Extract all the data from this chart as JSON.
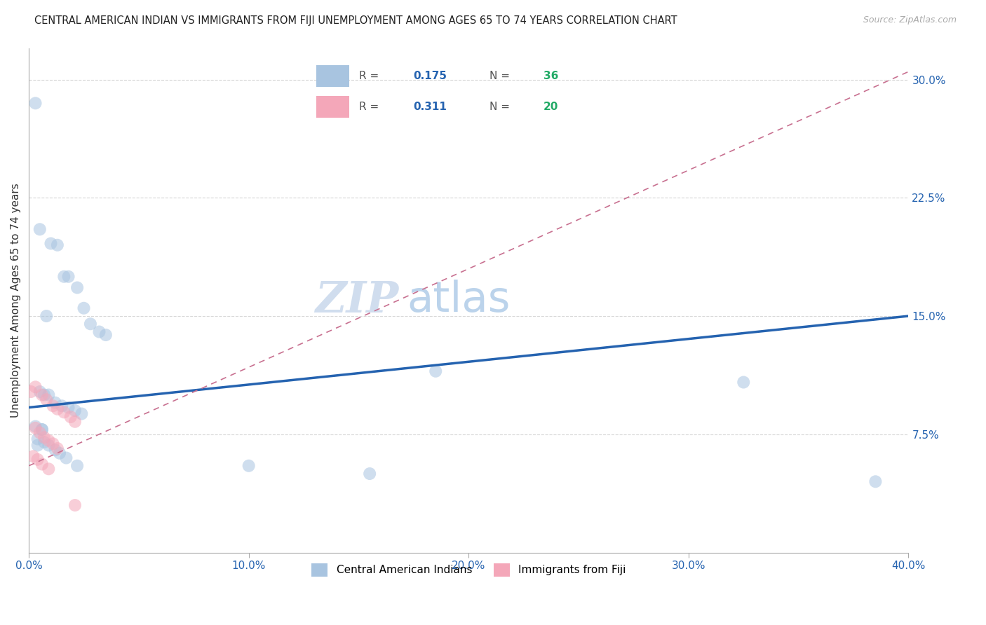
{
  "title": "CENTRAL AMERICAN INDIAN VS IMMIGRANTS FROM FIJI UNEMPLOYMENT AMONG AGES 65 TO 74 YEARS CORRELATION CHART",
  "source": "Source: ZipAtlas.com",
  "ylabel": "Unemployment Among Ages 65 to 74 years",
  "xlabel": "",
  "watermark_zip": "ZIP",
  "watermark_atlas": "atlas",
  "xlim": [
    0.0,
    0.4
  ],
  "ylim": [
    0.0,
    0.32
  ],
  "xticks": [
    0.0,
    0.1,
    0.2,
    0.3,
    0.4
  ],
  "yticks": [
    0.075,
    0.15,
    0.225,
    0.3
  ],
  "xticklabels": [
    "0.0%",
    "10.0%",
    "20.0%",
    "30.0%",
    "40.0%"
  ],
  "yticklabels": [
    "7.5%",
    "15.0%",
    "22.5%",
    "30.0%"
  ],
  "blue_line_color": "#2563b0",
  "pink_dashed_color": "#c87090",
  "grid_color": "#cccccc",
  "background_color": "#ffffff",
  "blue_scatter_color": "#a8c4e0",
  "pink_scatter_color": "#f4a7b9",
  "blue_scatter": [
    [
      0.003,
      0.285
    ],
    [
      0.005,
      0.205
    ],
    [
      0.01,
      0.196
    ],
    [
      0.013,
      0.195
    ],
    [
      0.016,
      0.175
    ],
    [
      0.018,
      0.175
    ],
    [
      0.022,
      0.168
    ],
    [
      0.025,
      0.155
    ],
    [
      0.008,
      0.15
    ],
    [
      0.028,
      0.145
    ],
    [
      0.032,
      0.14
    ],
    [
      0.035,
      0.138
    ],
    [
      0.005,
      0.102
    ],
    [
      0.007,
      0.1
    ],
    [
      0.009,
      0.1
    ],
    [
      0.012,
      0.095
    ],
    [
      0.015,
      0.093
    ],
    [
      0.018,
      0.092
    ],
    [
      0.021,
      0.09
    ],
    [
      0.024,
      0.088
    ],
    [
      0.003,
      0.08
    ],
    [
      0.006,
      0.078
    ],
    [
      0.004,
      0.072
    ],
    [
      0.007,
      0.07
    ],
    [
      0.009,
      0.068
    ],
    [
      0.012,
      0.065
    ],
    [
      0.014,
      0.063
    ],
    [
      0.017,
      0.06
    ],
    [
      0.022,
      0.055
    ],
    [
      0.1,
      0.055
    ],
    [
      0.155,
      0.05
    ],
    [
      0.185,
      0.115
    ],
    [
      0.325,
      0.108
    ],
    [
      0.385,
      0.045
    ],
    [
      0.006,
      0.078
    ],
    [
      0.004,
      0.068
    ]
  ],
  "pink_scatter": [
    [
      0.003,
      0.105
    ],
    [
      0.006,
      0.1
    ],
    [
      0.008,
      0.097
    ],
    [
      0.011,
      0.093
    ],
    [
      0.013,
      0.091
    ],
    [
      0.016,
      0.089
    ],
    [
      0.019,
      0.086
    ],
    [
      0.021,
      0.083
    ],
    [
      0.003,
      0.079
    ],
    [
      0.005,
      0.076
    ],
    [
      0.007,
      0.073
    ],
    [
      0.009,
      0.071
    ],
    [
      0.011,
      0.069
    ],
    [
      0.013,
      0.066
    ],
    [
      0.002,
      0.061
    ],
    [
      0.004,
      0.059
    ],
    [
      0.006,
      0.056
    ],
    [
      0.009,
      0.053
    ],
    [
      0.021,
      0.03
    ],
    [
      0.001,
      0.102
    ]
  ],
  "blue_line": {
    "x0": 0.0,
    "x1": 0.4,
    "y0": 0.092,
    "y1": 0.15
  },
  "pink_dashed_line": {
    "x0": 0.0,
    "x1": 0.4,
    "y0": 0.055,
    "y1": 0.305
  },
  "title_fontsize": 10.5,
  "source_fontsize": 9,
  "axis_label_fontsize": 11,
  "tick_fontsize": 11,
  "marker_size": 13,
  "marker_alpha": 0.55,
  "watermark_fontsize_zip": 44,
  "watermark_fontsize_atlas": 44,
  "watermark_color_zip": "#c8d8ec",
  "watermark_color_atlas": "#b0cce8",
  "r1_val": "0.175",
  "n1_val": "36",
  "r2_val": "0.311",
  "n2_val": "20",
  "val_color": "#2563b0",
  "n_val_color": "#22aa66",
  "legend_r_color": "#555555",
  "legend_box_blue": "#a8c4e0",
  "legend_box_pink": "#f4a7b9"
}
